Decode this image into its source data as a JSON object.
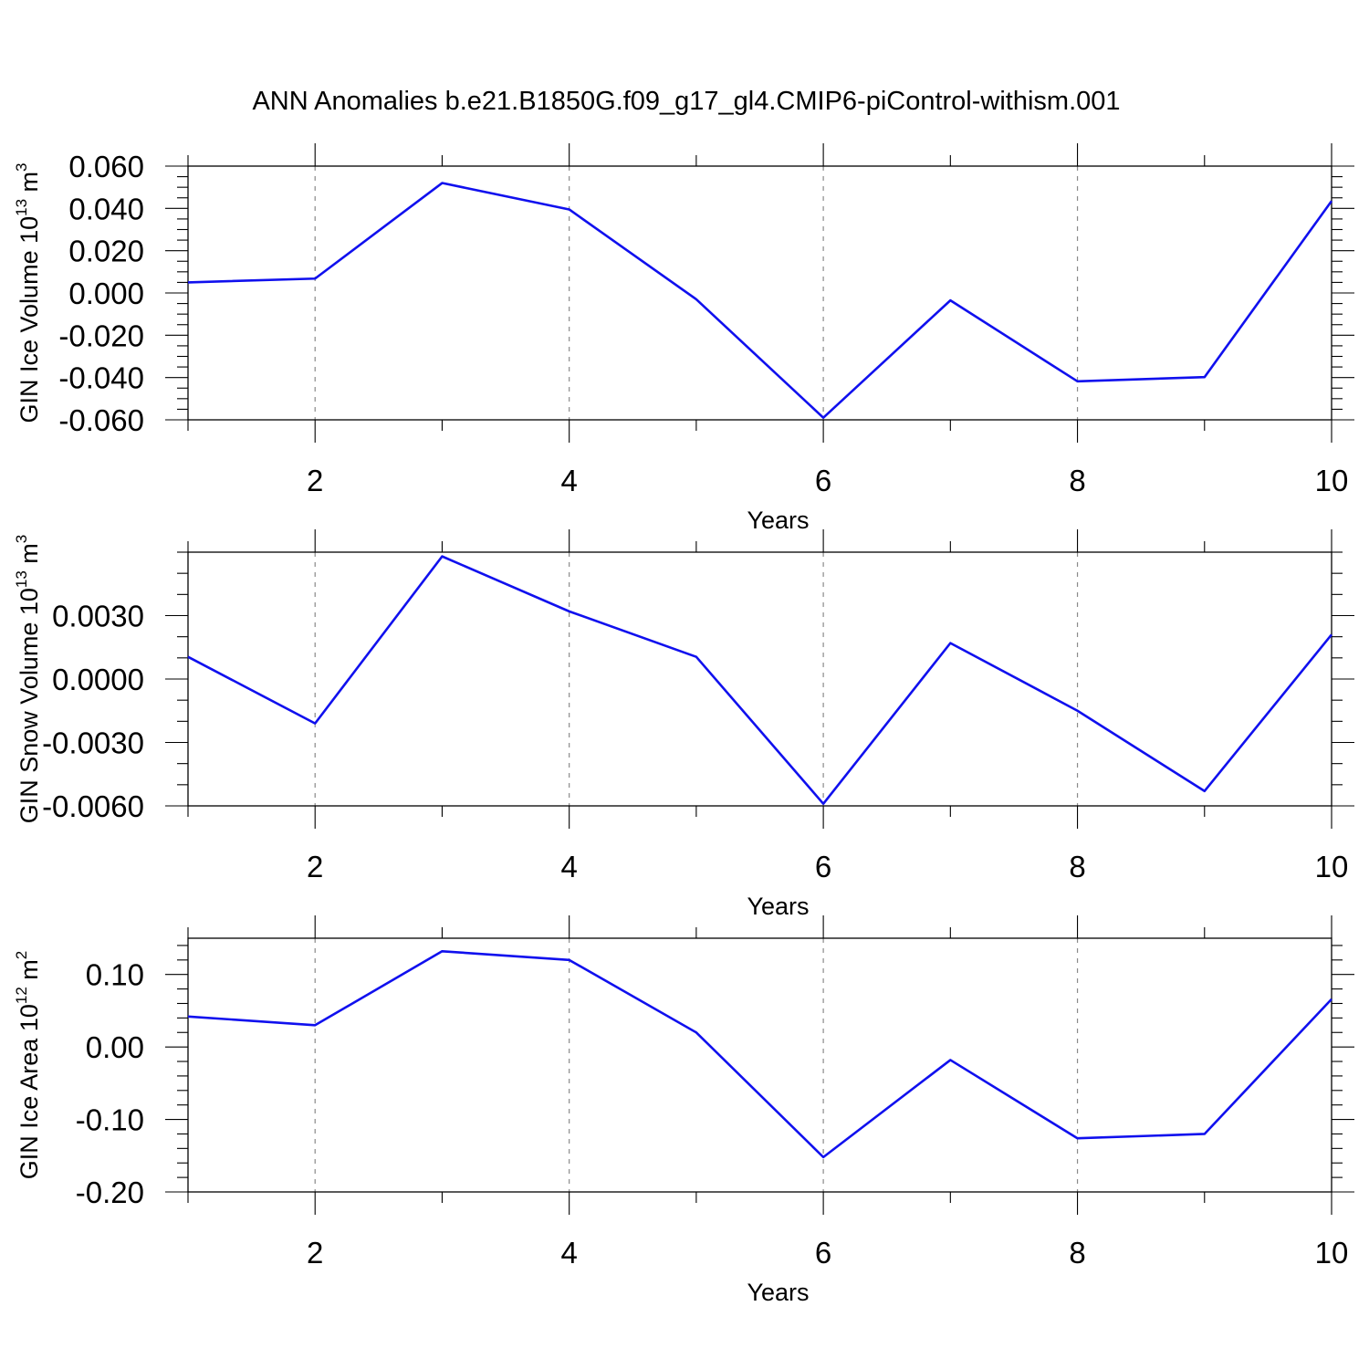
{
  "title": "ANN Anomalies b.e21.B1850G.f09_g17_gl4.CMIP6-piControl-withism.001",
  "colors": {
    "series": "#1010ee",
    "grid": "#8a8a8a"
  },
  "chart_data": [
    {
      "type": "line",
      "ylabel": {
        "text": "GIN Ice Volume 10",
        "sup": "13",
        "unit": " m",
        "unit_sup": "3"
      },
      "xlabel": "Years",
      "x": [
        1,
        2,
        3,
        4,
        5,
        6,
        7,
        8,
        9,
        10
      ],
      "series": [
        {
          "values": [
            0.005,
            0.0068,
            0.052,
            0.0395,
            -0.003,
            -0.059,
            -0.0035,
            -0.0418,
            -0.0398,
            0.0435
          ]
        }
      ],
      "xlim": [
        1,
        10
      ],
      "ylim": [
        -0.06,
        0.06
      ],
      "xticks": [
        2,
        4,
        6,
        8,
        10
      ],
      "xtick_labels": [
        "2",
        "4",
        "6",
        "8",
        "10"
      ],
      "yticks": [
        -0.06,
        -0.04,
        -0.02,
        0,
        0.02,
        0.04,
        0.06
      ],
      "ytick_labels": [
        "-0.060",
        "-0.040",
        "-0.020",
        "0.000",
        "0.020",
        "0.040",
        "0.060"
      ],
      "yminor_step": 0.005,
      "grid": "x-major-dashed"
    },
    {
      "type": "line",
      "ylabel": {
        "text": "GIN Snow Volume 10",
        "sup": "13",
        "unit": " m",
        "unit_sup": "3"
      },
      "xlabel": "Years",
      "x": [
        1,
        2,
        3,
        4,
        5,
        6,
        7,
        8,
        9,
        10
      ],
      "series": [
        {
          "values": [
            0.00105,
            -0.0021,
            0.0058,
            0.0032,
            0.00105,
            -0.0059,
            0.0017,
            -0.0015,
            -0.0053,
            0.0021
          ]
        }
      ],
      "xlim": [
        1,
        10
      ],
      "ylim": [
        -0.006,
        0.006
      ],
      "xticks": [
        2,
        4,
        6,
        8,
        10
      ],
      "xtick_labels": [
        "2",
        "4",
        "6",
        "8",
        "10"
      ],
      "yticks": [
        -0.006,
        -0.003,
        0,
        0.003
      ],
      "ytick_labels": [
        "-0.0060",
        "-0.0030",
        "0.0000",
        "0.0030"
      ],
      "yminor_step": 0.001,
      "grid": "x-major-dashed"
    },
    {
      "type": "line",
      "ylabel": {
        "text": "GIN Ice Area 10",
        "sup": "12",
        "unit": " m",
        "unit_sup": "2"
      },
      "xlabel": "Years",
      "x": [
        1,
        2,
        3,
        4,
        5,
        6,
        7,
        8,
        9,
        10
      ],
      "series": [
        {
          "values": [
            0.042,
            0.03,
            0.132,
            0.12,
            0.02,
            -0.152,
            -0.018,
            -0.126,
            -0.12,
            0.066
          ]
        }
      ],
      "xlim": [
        1,
        10
      ],
      "ylim": [
        -0.2,
        0.15
      ],
      "xticks": [
        2,
        4,
        6,
        8,
        10
      ],
      "xtick_labels": [
        "2",
        "4",
        "6",
        "8",
        "10"
      ],
      "yticks": [
        -0.2,
        -0.1,
        0,
        0.1
      ],
      "ytick_labels": [
        "-0.20",
        "-0.10",
        "0.00",
        "0.10"
      ],
      "yminor_step": 0.02,
      "grid": "x-major-dashed"
    }
  ]
}
